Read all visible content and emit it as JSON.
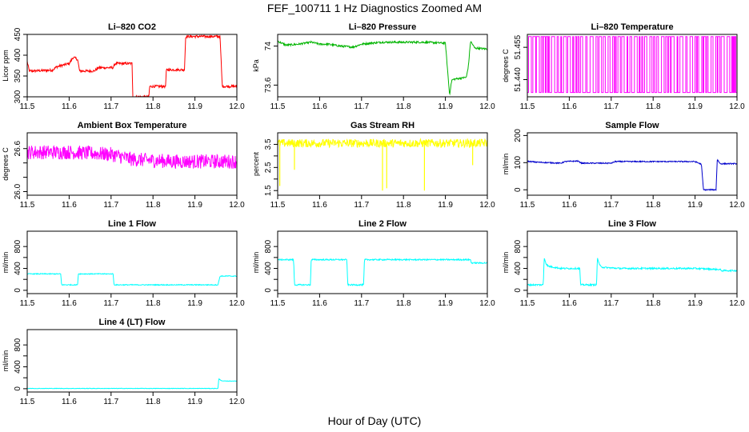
{
  "figure": {
    "title": "FEF_100711  1 Hz Diagnostics Zoomed AM",
    "xlabel": "Hour of Day (UTC)"
  },
  "chart_data": [
    {
      "type": "line",
      "title": "Li–820 CO2",
      "ylabel": "Licor ppm",
      "color": "#ff0000",
      "xlim": [
        11.5,
        12.0
      ],
      "ylim": [
        300,
        450
      ],
      "yticks": [
        300,
        350,
        400,
        450
      ],
      "xticks": [
        11.5,
        11.6,
        11.7,
        11.8,
        11.9,
        12.0
      ],
      "noise": 3,
      "x": [
        11.5,
        11.505,
        11.51,
        11.56,
        11.57,
        11.6,
        11.61,
        11.62,
        11.625,
        11.66,
        11.67,
        11.705,
        11.71,
        11.75,
        11.752,
        11.79,
        11.792,
        11.83,
        11.832,
        11.875,
        11.878,
        11.96,
        11.965,
        12.0
      ],
      "y": [
        385,
        362,
        362,
        364,
        372,
        380,
        395,
        390,
        362,
        362,
        370,
        370,
        380,
        380,
        300,
        300,
        325,
        325,
        365,
        365,
        445,
        445,
        325,
        325
      ]
    },
    {
      "type": "line",
      "title": "Li–820 Pressure",
      "ylabel": "kPa",
      "color": "#00b400",
      "xlim": [
        11.5,
        12.0
      ],
      "ylim": [
        73.48,
        74.12
      ],
      "yticks": [
        73.6,
        74.0
      ],
      "xticks": [
        11.5,
        11.6,
        11.7,
        11.8,
        11.9,
        12.0
      ],
      "noise": 0.01,
      "x": [
        11.5,
        11.51,
        11.52,
        11.55,
        11.58,
        11.6,
        11.62,
        11.65,
        11.68,
        11.7,
        11.72,
        11.75,
        11.8,
        11.85,
        11.9,
        11.91,
        11.915,
        11.92,
        11.95,
        11.955,
        11.96,
        11.97,
        12.0
      ],
      "y": [
        74.05,
        74.03,
        74.01,
        74.02,
        74.04,
        74.02,
        74.02,
        74.0,
        73.99,
        74.02,
        74.03,
        74.04,
        74.04,
        74.04,
        74.03,
        73.5,
        73.65,
        73.66,
        73.68,
        73.8,
        74.05,
        73.98,
        73.97
      ]
    },
    {
      "type": "line",
      "title": "Li–820 Temperature",
      "ylabel": "degrees C",
      "color": "#ff00ff",
      "xlim": [
        11.5,
        12.0
      ],
      "ylim": [
        51.432,
        51.461
      ],
      "yticks": [
        51.44,
        51.455
      ],
      "ytick_labels": [
        "51.440",
        "51.455"
      ],
      "xticks": [
        11.5,
        11.6,
        11.7,
        11.8,
        11.9,
        12.0
      ],
      "binary": [
        51.434,
        51.46
      ]
    },
    {
      "type": "line",
      "title": "Ambient Box Temperature",
      "ylabel": "degrees C",
      "color": "#ff00ff",
      "xlim": [
        11.5,
        12.0
      ],
      "ylim": [
        25.95,
        26.82
      ],
      "yticks": [
        26.0,
        26.2,
        26.4,
        26.6
      ],
      "ytick_labels": [
        "26.0",
        "",
        "",
        "26.6"
      ],
      "xticks": [
        11.5,
        11.6,
        11.7,
        11.8,
        11.9,
        12.0
      ],
      "noise": 0.1,
      "x": [
        11.5,
        11.6,
        11.7,
        11.75,
        11.85,
        12.0
      ],
      "y": [
        26.55,
        26.55,
        26.52,
        26.45,
        26.42,
        26.42
      ]
    },
    {
      "type": "line",
      "title": "Gas Stream RH",
      "ylabel": "percent",
      "color": "#ffff00",
      "xlim": [
        11.5,
        12.0
      ],
      "ylim": [
        1.3,
        4.0
      ],
      "yticks": [
        1.5,
        2.5,
        3.5
      ],
      "yticks_minor": [
        2.0,
        3.0
      ],
      "xticks": [
        11.5,
        11.6,
        11.7,
        11.8,
        11.9,
        12.0
      ],
      "noise": 0.18,
      "x": [
        11.5,
        12.0
      ],
      "y": [
        3.55,
        3.55
      ],
      "spikes": [
        [
          11.505,
          1.7
        ],
        [
          11.54,
          2.4
        ],
        [
          11.75,
          1.5
        ],
        [
          11.76,
          1.6
        ],
        [
          11.85,
          1.5
        ],
        [
          11.965,
          2.6
        ]
      ]
    },
    {
      "type": "line",
      "title": "Sample Flow",
      "ylabel": "ml/min",
      "color": "#0000cc",
      "xlim": [
        11.5,
        12.0
      ],
      "ylim": [
        -20,
        210
      ],
      "yticks": [
        0,
        100,
        200
      ],
      "xticks": [
        11.5,
        11.6,
        11.7,
        11.8,
        11.9,
        12.0
      ],
      "noise": 2,
      "x": [
        11.5,
        11.52,
        11.58,
        11.59,
        11.62,
        11.63,
        11.7,
        11.71,
        11.9,
        11.915,
        11.92,
        11.95,
        11.953,
        11.96,
        12.0
      ],
      "y": [
        105,
        102,
        98,
        104,
        106,
        98,
        98,
        104,
        104,
        94,
        0,
        0,
        112,
        96,
        96
      ]
    },
    {
      "type": "line",
      "title": "Line 1 Flow",
      "ylabel": "ml/min",
      "color": "#00ffff",
      "xlim": [
        11.5,
        12.0
      ],
      "ylim": [
        -60,
        1080
      ],
      "yticks": [
        0,
        200,
        400,
        600,
        800
      ],
      "ytick_labels": [
        "0",
        "",
        "400",
        "",
        "800"
      ],
      "xticks": [
        11.5,
        11.6,
        11.7,
        11.8,
        11.9,
        12.0
      ],
      "noise": 8,
      "x": [
        11.5,
        11.58,
        11.582,
        11.62,
        11.622,
        11.705,
        11.707,
        11.955,
        11.96,
        12.0
      ],
      "y": [
        300,
        300,
        100,
        100,
        300,
        300,
        100,
        100,
        260,
        260
      ]
    },
    {
      "type": "line",
      "title": "Line 2 Flow",
      "ylabel": "ml/min",
      "color": "#00ffff",
      "xlim": [
        11.5,
        12.0
      ],
      "ylim": [
        -60,
        1080
      ],
      "yticks": [
        0,
        200,
        400,
        600,
        800
      ],
      "ytick_labels": [
        "0",
        "",
        "400",
        "",
        "800"
      ],
      "xticks": [
        11.5,
        11.6,
        11.7,
        11.8,
        11.9,
        12.0
      ],
      "noise": 12,
      "x": [
        11.5,
        11.538,
        11.54,
        11.578,
        11.58,
        11.665,
        11.667,
        11.705,
        11.707,
        11.96,
        11.962,
        12.0
      ],
      "y": [
        560,
        560,
        100,
        100,
        560,
        560,
        100,
        100,
        560,
        560,
        500,
        500
      ]
    },
    {
      "type": "line",
      "title": "Line 3 Flow",
      "ylabel": "ml/min",
      "color": "#00ffff",
      "xlim": [
        11.5,
        12.0
      ],
      "ylim": [
        -60,
        1080
      ],
      "yticks": [
        0,
        200,
        400,
        600,
        800
      ],
      "ytick_labels": [
        "0",
        "",
        "400",
        "",
        "800"
      ],
      "xticks": [
        11.5,
        11.6,
        11.7,
        11.8,
        11.9,
        12.0
      ],
      "noise": 14,
      "x": [
        11.5,
        11.538,
        11.54,
        11.545,
        11.55,
        11.58,
        11.625,
        11.627,
        11.665,
        11.667,
        11.672,
        11.68,
        11.72,
        11.9,
        11.96,
        11.962,
        12.0
      ],
      "y": [
        100,
        100,
        600,
        480,
        440,
        400,
        400,
        100,
        100,
        600,
        460,
        420,
        400,
        400,
        380,
        360,
        360
      ]
    },
    {
      "type": "line",
      "title": "Line 4 (LT) Flow",
      "ylabel": "ml/min",
      "color": "#00ffff",
      "xlim": [
        11.5,
        12.0
      ],
      "ylim": [
        -60,
        1080
      ],
      "yticks": [
        0,
        200,
        400,
        600,
        800
      ],
      "ytick_labels": [
        "0",
        "",
        "400",
        "",
        "800"
      ],
      "xticks": [
        11.5,
        11.6,
        11.7,
        11.8,
        11.9,
        12.0
      ],
      "noise": 4,
      "x": [
        11.5,
        11.955,
        11.957,
        11.965,
        12.0
      ],
      "y": [
        5,
        5,
        180,
        140,
        140
      ]
    }
  ]
}
